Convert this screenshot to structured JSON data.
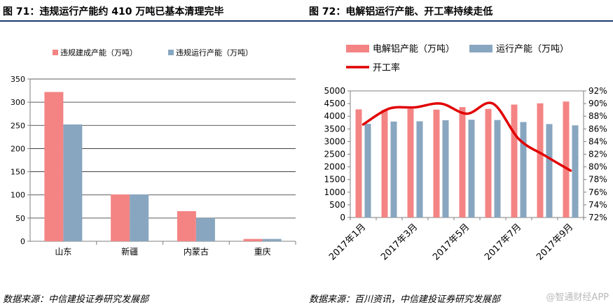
{
  "watermark": "@智通财经APP",
  "colors": {
    "pink": "#f48484",
    "blue": "#88a6bf",
    "red_line": "#e10000",
    "axis": "#7f7f7f",
    "grid": "#262626",
    "rule": "#1f3b6e"
  },
  "left": {
    "title": "图 71：违规运行产能约 410 万吨已基本清理完毕",
    "source": "数据来源：中信建投证券研究发展部",
    "chart_data": {
      "type": "bar",
      "categories": [
        "山东",
        "新疆",
        "内蒙古",
        "重庆"
      ],
      "series": [
        {
          "name": "违规建成产能（万吨）",
          "values": [
            322,
            101,
            65,
            5
          ]
        },
        {
          "name": "违规运行产能（万吨）",
          "values": [
            252,
            101,
            50,
            5
          ]
        }
      ],
      "ylim": [
        0,
        350
      ],
      "yticks": [
        "0",
        "50",
        "100",
        "150",
        "200",
        "250",
        "300",
        "350"
      ],
      "grid": true,
      "legend": "top"
    }
  },
  "right": {
    "title": "图 72：电解铝运行产能、开工率持续走低",
    "source": "数据来源：百川资讯，中信建投证券研究发展部",
    "chart_data": {
      "type": "bar+line",
      "x": [
        "2017年1月",
        "2017年2月",
        "2017年3月",
        "2017年4月",
        "2017年5月",
        "2017年6月",
        "2017年7月",
        "2017年8月",
        "2017年9月"
      ],
      "xtick_labels": [
        "2017年1月",
        "",
        "2017年3月",
        "",
        "2017年5月",
        "",
        "2017年7月",
        "",
        "2017年9月"
      ],
      "series": [
        {
          "name": "电解铝产能（万吨）",
          "type": "bar",
          "axis": "left",
          "values": [
            4270,
            4250,
            4290,
            4260,
            4360,
            4290,
            4460,
            4510,
            4580
          ]
        },
        {
          "name": "运行产能（万吨）",
          "type": "bar",
          "axis": "left",
          "values": [
            3700,
            3790,
            3800,
            3840,
            3860,
            3850,
            3770,
            3690,
            3640
          ]
        },
        {
          "name": "开工率",
          "type": "line",
          "axis": "right",
          "values": [
            86.7,
            89.2,
            89.4,
            90.0,
            88.4,
            90.0,
            84.4,
            81.8,
            79.4
          ]
        }
      ],
      "ylim_left": [
        0,
        5000
      ],
      "yticks_left": [
        "0",
        "500",
        "1000",
        "1500",
        "2000",
        "2500",
        "3000",
        "3500",
        "4000",
        "4500",
        "5000"
      ],
      "ylim_right": [
        72,
        92
      ],
      "yticks_right": [
        "72%",
        "74%",
        "76%",
        "78%",
        "80%",
        "82%",
        "84%",
        "86%",
        "88%",
        "90%",
        "92%"
      ],
      "grid": false,
      "legend": "top"
    }
  }
}
